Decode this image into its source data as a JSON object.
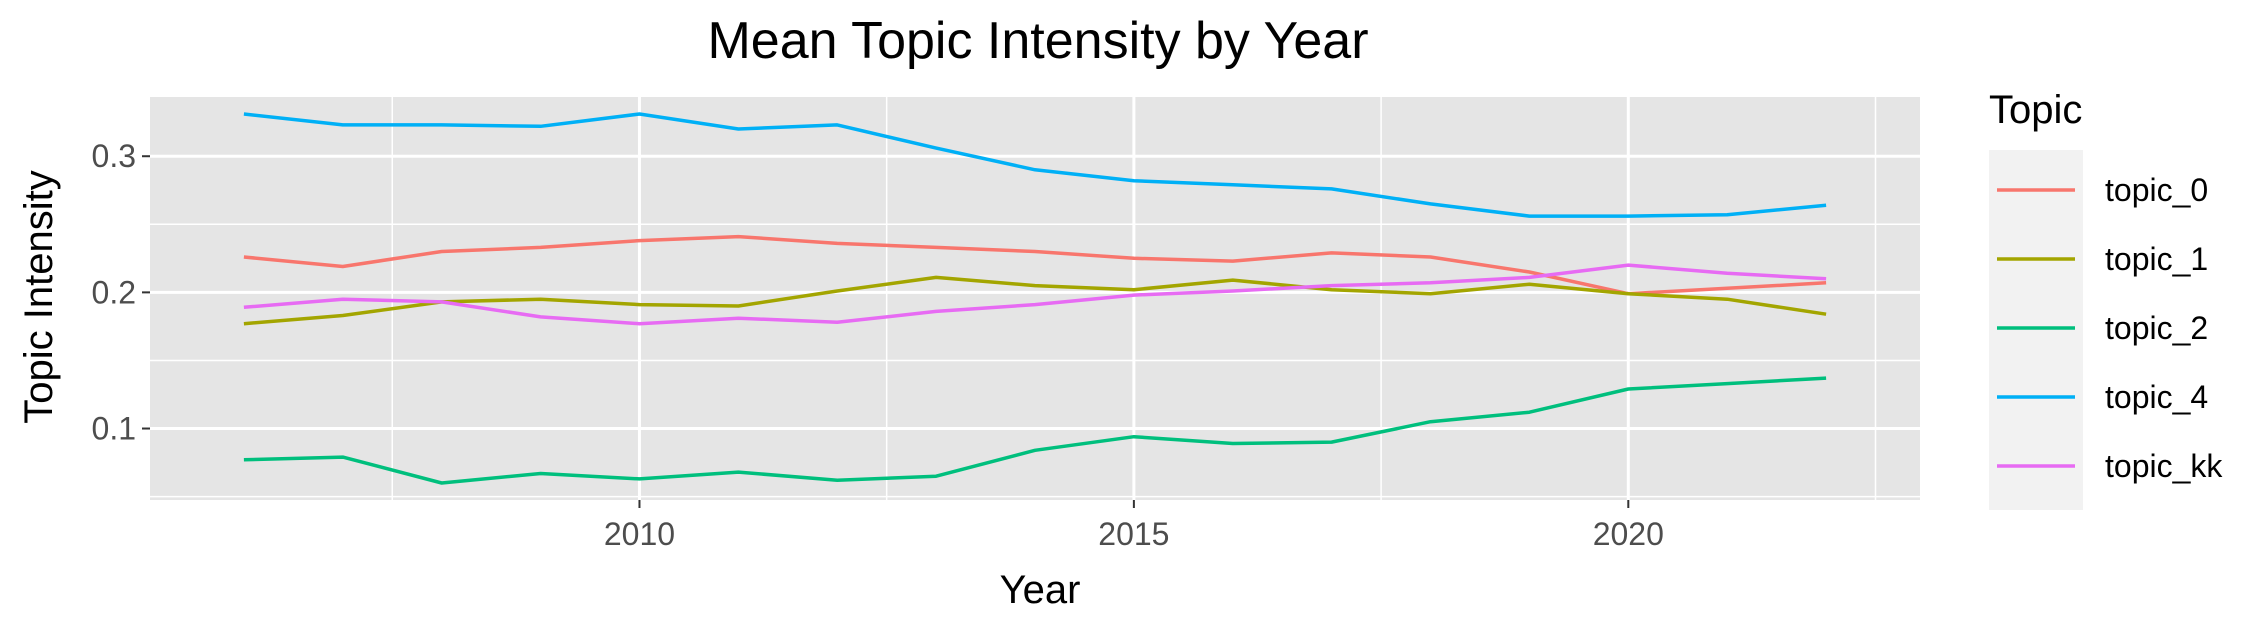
{
  "chart_data": {
    "type": "line",
    "title": "Mean Topic Intensity by Year",
    "xlabel": "Year",
    "ylabel": "Topic Intensity",
    "xlim": [
      2005.05,
      2022.95
    ],
    "ylim": [
      0.0475,
      0.3435
    ],
    "x_ticks": [
      2010,
      2015,
      2020
    ],
    "x_tick_labels": [
      "2010",
      "2015",
      "2020"
    ],
    "y_ticks": [
      0.1,
      0.2,
      0.3
    ],
    "y_tick_labels": [
      "0.1",
      "0.2",
      "0.3"
    ],
    "grid": true,
    "legend": {
      "title": "Topic",
      "position": "right"
    },
    "x": [
      2006,
      2007,
      2008,
      2009,
      2010,
      2011,
      2012,
      2013,
      2014,
      2015,
      2016,
      2017,
      2018,
      2019,
      2020,
      2021,
      2022
    ],
    "series": [
      {
        "name": "topic_0",
        "color": "#F8766D",
        "values": [
          0.226,
          0.219,
          0.23,
          0.233,
          0.238,
          0.241,
          0.236,
          0.233,
          0.23,
          0.225,
          0.223,
          0.229,
          0.226,
          0.215,
          0.199,
          0.203,
          0.207
        ]
      },
      {
        "name": "topic_1",
        "color": "#A3A500",
        "values": [
          0.177,
          0.183,
          0.193,
          0.195,
          0.191,
          0.19,
          0.201,
          0.211,
          0.205,
          0.202,
          0.209,
          0.202,
          0.199,
          0.206,
          0.199,
          0.195,
          0.184
        ]
      },
      {
        "name": "topic_2",
        "color": "#00BF7D",
        "values": [
          0.077,
          0.079,
          0.06,
          0.067,
          0.063,
          0.068,
          0.062,
          0.065,
          0.084,
          0.094,
          0.089,
          0.09,
          0.105,
          0.112,
          0.129,
          0.133,
          0.137
        ]
      },
      {
        "name": "topic_4",
        "color": "#00B0F6",
        "values": [
          0.331,
          0.323,
          0.323,
          0.322,
          0.331,
          0.32,
          0.323,
          0.306,
          0.29,
          0.282,
          0.279,
          0.276,
          0.265,
          0.256,
          0.256,
          0.257,
          0.264
        ]
      },
      {
        "name": "topic_kk",
        "color": "#E76BF3",
        "values": [
          0.189,
          0.195,
          0.193,
          0.182,
          0.177,
          0.181,
          0.178,
          0.186,
          0.191,
          0.198,
          0.201,
          0.205,
          0.207,
          0.211,
          0.22,
          0.214,
          0.21
        ]
      }
    ]
  }
}
